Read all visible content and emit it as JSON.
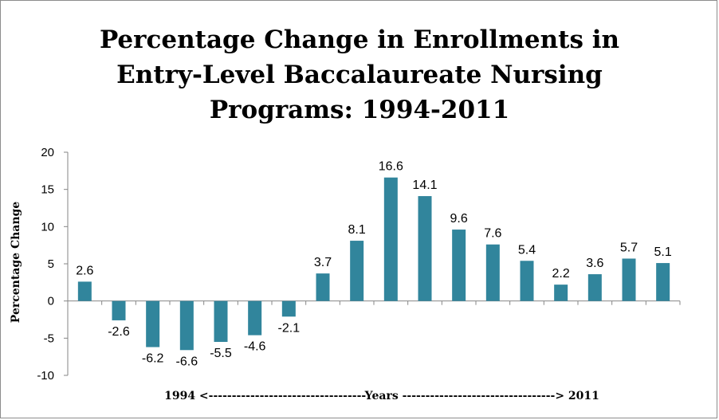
{
  "chart_data": {
    "type": "bar",
    "title_lines": [
      "Percentage Change in Enrollments in",
      "Entry-Level Baccalaureate Nursing",
      "Programs: 1994-2011"
    ],
    "xlabel": "1994 <----------------------------------Years ---------------------------------> 2011",
    "ylabel": "Percentage Change",
    "ylim": [
      -10,
      20
    ],
    "yticks": [
      "20",
      "15",
      "10",
      "5",
      "0",
      "-5",
      "-10"
    ],
    "ytick_values": [
      20,
      15,
      10,
      5,
      0,
      -5,
      -10
    ],
    "values": [
      2.6,
      -2.6,
      -6.2,
      -6.6,
      -5.5,
      -4.6,
      -2.1,
      3.7,
      8.1,
      16.6,
      14.1,
      9.6,
      7.6,
      5.4,
      2.2,
      3.6,
      5.7,
      5.1
    ],
    "value_labels": [
      "2.6",
      "-2.6",
      "-6.2",
      "-6.6",
      "-5.5",
      "-4.6",
      "-2.1",
      "3.7",
      "8.1",
      "16.6",
      "14.1",
      "9.6",
      "7.6",
      "5.4",
      "2.2",
      "3.6",
      "5.7",
      "5.1"
    ],
    "bar_color": "#31859c",
    "grid": false,
    "legend": "none"
  }
}
